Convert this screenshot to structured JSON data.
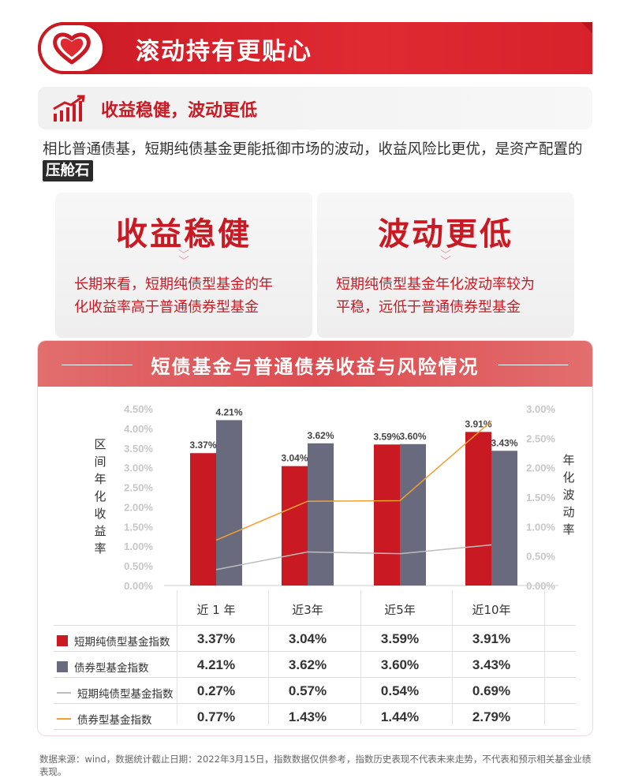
{
  "banner": {
    "title": "滚动持有更贴心"
  },
  "subhead": {
    "title": "收益稳健，波动更低"
  },
  "intro": {
    "text": "相比普通债基，短期纯债基金更能抵御市场的波动，收益风险比更优，是资产配置的",
    "tag": "压舱石"
  },
  "cards": [
    {
      "title": "收益稳健",
      "line1": "长期来看，短期纯债型基金的年",
      "line2": "化收益率高于普通债券型基金"
    },
    {
      "title": "波动更低",
      "line1": "短期纯债型基金年化波动率较为",
      "line2": "平稳，远低于普通债券型基金"
    }
  ],
  "chart_title": "短债基金与普通债券收益与风险情况",
  "chart_data": {
    "type": "bar",
    "categories": [
      "近 1 年",
      "近3年",
      "近5年",
      "近10年"
    ],
    "series": [
      {
        "name": "短期纯债型基金指数",
        "kind": "bar",
        "axis": "left",
        "color": "#c91a24",
        "values": [
          3.37,
          3.04,
          3.59,
          3.91
        ],
        "labels": [
          "3.37%",
          "3.04%",
          "3.59%",
          "3.91%"
        ]
      },
      {
        "name": "债券型基金指数",
        "kind": "bar",
        "axis": "left",
        "color": "#6a6a7e",
        "values": [
          4.21,
          3.62,
          3.6,
          3.43
        ],
        "labels": [
          "4.21%",
          "3.62%",
          "3.60%",
          "3.43%"
        ]
      },
      {
        "name": "短期纯债型基金指数",
        "kind": "line",
        "axis": "right",
        "color": "#bdbdbd",
        "values": [
          0.27,
          0.57,
          0.54,
          0.69
        ],
        "labels": [
          "0.27%",
          "0.57%",
          "0.54%",
          "0.69%"
        ]
      },
      {
        "name": "债券型基金指数",
        "kind": "line",
        "axis": "right",
        "color": "#f0a030",
        "values": [
          0.77,
          1.43,
          1.44,
          2.79
        ],
        "labels": [
          "0.77%",
          "1.43%",
          "1.44%",
          "2.79%"
        ]
      }
    ],
    "ylabel": "区间年化收益率",
    "y2label": "年化波动率",
    "ylim": [
      0,
      4.5
    ],
    "y2lim": [
      0,
      3.0
    ],
    "yticks": [
      "0.00%",
      "0.50%",
      "1.00%",
      "1.50%",
      "2.00%",
      "2.50%",
      "3.00%",
      "3.50%",
      "4.00%",
      "4.50%"
    ],
    "y2ticks": [
      "0.00%",
      "0.50%",
      "1.00%",
      "1.50%",
      "2.00%",
      "2.50%",
      "3.00%"
    ]
  },
  "footer": "数据来源：wind，数据统计截止日期：2022年3月15日，指数数据仅供参考，指数历史表现不代表未来走势，不代表和预示相关基金业绩表现。"
}
